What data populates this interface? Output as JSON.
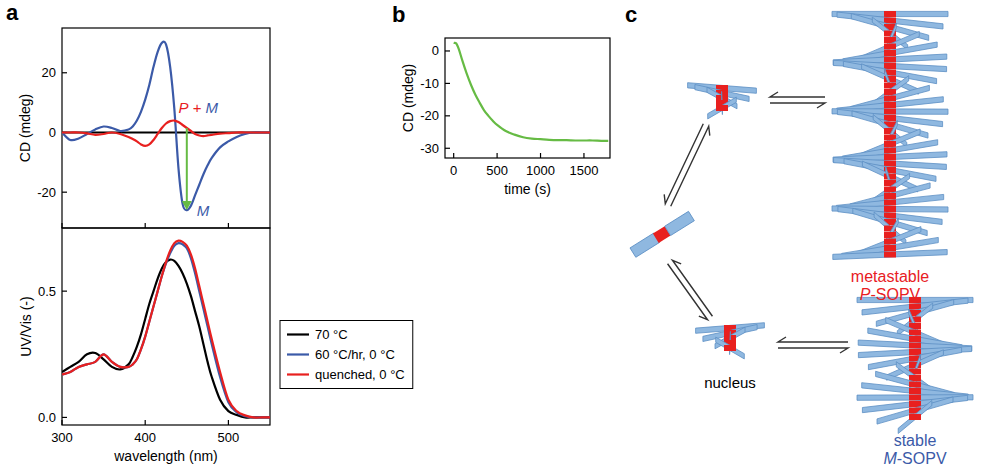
{
  "panel_labels": [
    "a",
    "b",
    "c"
  ],
  "chart_data": [
    {
      "type": "line",
      "y_label": "CD (mdeg)",
      "x": [
        300,
        310,
        320,
        330,
        340,
        350,
        360,
        370,
        380,
        385,
        390,
        395,
        400,
        405,
        410,
        415,
        420,
        425,
        430,
        435,
        440,
        445,
        450,
        455,
        460,
        465,
        470,
        475,
        480,
        490,
        500,
        510,
        520,
        530,
        540,
        550
      ],
      "xlim": [
        300,
        550
      ],
      "xticks": [
        300,
        400,
        500
      ],
      "ylim": [
        -32,
        35
      ],
      "yticks": [
        -20,
        0,
        20
      ],
      "tick_labels": "y",
      "series": [
        {
          "color": "#000000",
          "values": [
            0,
            0,
            0,
            0,
            0,
            0,
            0,
            0,
            0,
            0,
            0,
            0,
            0,
            0,
            0,
            0,
            0,
            0,
            0,
            0,
            0,
            0,
            0,
            0,
            0,
            0,
            0,
            0,
            0,
            0,
            0,
            0,
            0,
            0,
            0,
            0
          ]
        },
        {
          "color": "#3b5aa8",
          "values": [
            0,
            -2.5,
            -2,
            -0.5,
            1,
            2,
            1.5,
            0.5,
            1,
            2,
            4,
            7,
            11,
            16,
            22,
            27,
            30,
            29.5,
            22,
            8,
            -12,
            -24,
            -26,
            -24.5,
            -21,
            -17.5,
            -14,
            -11,
            -8.5,
            -5,
            -3,
            -1.5,
            -0.5,
            0,
            0,
            0
          ]
        },
        {
          "color": "#e8201f",
          "values": [
            0,
            0,
            0,
            -0.3,
            -0.8,
            -0.5,
            0,
            -0.5,
            -1.5,
            -2.2,
            -3,
            -4,
            -4.5,
            -4,
            -2.5,
            -0.5,
            1.5,
            3,
            3.8,
            4,
            3.5,
            2.5,
            1.5,
            0.5,
            -0.5,
            -1,
            -1.2,
            -1,
            -0.8,
            -0.4,
            -0.2,
            0,
            0,
            0,
            0,
            0
          ]
        }
      ],
      "annotations": [
        {
          "text": "P + M",
          "x": 440,
          "y": 6.5,
          "colors": [
            "#e8201f",
            "#3b5aa8"
          ]
        },
        {
          "text": "M",
          "x": 462,
          "y": -28,
          "color": "#3b5aa8"
        }
      ]
    },
    {
      "type": "line",
      "x_label": "wavelength (nm)",
      "y_label": "UV/Vis (-)",
      "x": [
        300,
        310,
        320,
        330,
        340,
        350,
        360,
        370,
        380,
        385,
        390,
        395,
        400,
        405,
        410,
        415,
        420,
        425,
        430,
        435,
        440,
        445,
        450,
        455,
        460,
        465,
        470,
        475,
        480,
        490,
        500,
        510,
        520,
        530,
        540,
        550
      ],
      "xlim": [
        300,
        550
      ],
      "xticks": [
        300,
        400,
        500
      ],
      "ylim": [
        -0.03,
        0.75
      ],
      "yticks": [
        {
          "value": 0,
          "label": "0.0"
        },
        {
          "value": 0.5,
          "label": "0.5"
        }
      ],
      "legend": "right",
      "series": [
        {
          "name": "70 °C",
          "color": "#000000",
          "values": [
            0.18,
            0.2,
            0.22,
            0.25,
            0.255,
            0.23,
            0.2,
            0.19,
            0.21,
            0.24,
            0.28,
            0.33,
            0.39,
            0.45,
            0.5,
            0.55,
            0.59,
            0.615,
            0.625,
            0.62,
            0.6,
            0.57,
            0.53,
            0.48,
            0.42,
            0.36,
            0.29,
            0.22,
            0.16,
            0.07,
            0.025,
            0.01,
            0,
            0,
            0,
            0
          ]
        },
        {
          "name": "60 °C/hr, 0 °C",
          "color": "#3b5aa8",
          "values": [
            0.17,
            0.18,
            0.2,
            0.21,
            0.22,
            0.25,
            0.22,
            0.2,
            0.2,
            0.21,
            0.23,
            0.27,
            0.32,
            0.38,
            0.44,
            0.5,
            0.56,
            0.61,
            0.65,
            0.68,
            0.69,
            0.685,
            0.67,
            0.63,
            0.57,
            0.5,
            0.43,
            0.36,
            0.29,
            0.16,
            0.06,
            0.02,
            0.005,
            0,
            0,
            0
          ]
        },
        {
          "name": "quenched, 0 °C",
          "color": "#e8201f",
          "values": [
            0.17,
            0.18,
            0.2,
            0.21,
            0.22,
            0.25,
            0.22,
            0.2,
            0.2,
            0.21,
            0.23,
            0.27,
            0.32,
            0.38,
            0.44,
            0.5,
            0.56,
            0.615,
            0.66,
            0.69,
            0.7,
            0.695,
            0.68,
            0.645,
            0.59,
            0.52,
            0.45,
            0.38,
            0.31,
            0.18,
            0.07,
            0.025,
            0.008,
            0,
            0,
            0
          ]
        }
      ]
    },
    {
      "type": "line",
      "x_label": "time (s)",
      "y_label": "CD (mdeg)",
      "x": [
        0,
        30,
        60,
        100,
        150,
        200,
        250,
        300,
        350,
        400,
        450,
        500,
        600,
        700,
        800,
        900,
        1000,
        1100,
        1200,
        1300,
        1400,
        1500,
        1600,
        1700,
        1780
      ],
      "xlim": [
        -100,
        1800
      ],
      "xticks": [
        0,
        500,
        1000,
        1500
      ],
      "ylim": [
        -33,
        4
      ],
      "yticks": [
        -30,
        -20,
        -10,
        0
      ],
      "series": [
        {
          "color": "#66bb44",
          "values": [
            2.5,
            2.3,
            0.5,
            -3,
            -7,
            -10.5,
            -13.5,
            -16,
            -18.3,
            -20,
            -21.5,
            -22.8,
            -24.7,
            -25.8,
            -26.6,
            -27,
            -27.2,
            -27.4,
            -27.5,
            -27.5,
            -27.6,
            -27.6,
            -27.6,
            -27.7,
            -27.7
          ]
        }
      ]
    }
  ],
  "diagram": {
    "metastable": {
      "lines": [
        "metastable",
        "P-SOPV"
      ],
      "color": "#e8201f"
    },
    "nucleus": {
      "text": "nucleus"
    },
    "stable": {
      "lines": [
        "stable",
        "M-SOPV"
      ],
      "color": "#3b5aa8"
    }
  }
}
